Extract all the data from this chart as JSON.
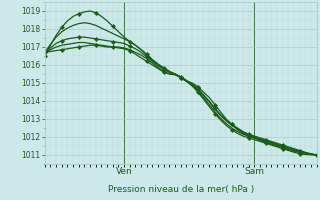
{
  "xlabel": "Pression niveau de la mer( hPa )",
  "bg_color": "#cce8e8",
  "grid_color_major": "#aacccc",
  "grid_color_minor": "#bbdddd",
  "line_color": "#1a5c1a",
  "ylim": [
    1010.5,
    1019.5
  ],
  "xlim": [
    0,
    48
  ],
  "ven_x": 14,
  "sam_x": 37,
  "yticks": [
    1011,
    1012,
    1013,
    1014,
    1015,
    1016,
    1017,
    1018,
    1019
  ],
  "series": [
    {
      "y": [
        1016.7,
        1016.75,
        1016.8,
        1016.85,
        1016.9,
        1016.95,
        1017.0,
        1017.05,
        1017.1,
        1017.1,
        1017.05,
        1017.0,
        1017.0,
        1016.95,
        1016.9,
        1016.8,
        1016.6,
        1016.4,
        1016.2,
        1016.0,
        1015.8,
        1015.6,
        1015.5,
        1015.5,
        1015.3,
        1015.1,
        1015.0,
        1014.8,
        1014.5,
        1014.2,
        1013.8,
        1013.4,
        1013.0,
        1012.7,
        1012.4,
        1012.2,
        1012.05,
        1011.95,
        1011.8,
        1011.7,
        1011.6,
        1011.5,
        1011.4,
        1011.3,
        1011.2,
        1011.15,
        1011.1,
        1011.05,
        1011.0
      ],
      "markers": true
    },
    {
      "y": [
        1016.7,
        1016.85,
        1017.0,
        1017.1,
        1017.15,
        1017.2,
        1017.25,
        1017.25,
        1017.2,
        1017.15,
        1017.1,
        1017.05,
        1017.0,
        1017.0,
        1016.95,
        1016.85,
        1016.7,
        1016.55,
        1016.35,
        1016.1,
        1015.85,
        1015.65,
        1015.5,
        1015.45,
        1015.3,
        1015.1,
        1014.9,
        1014.65,
        1014.3,
        1013.95,
        1013.55,
        1013.2,
        1012.9,
        1012.65,
        1012.45,
        1012.25,
        1012.1,
        1012.0,
        1011.9,
        1011.8,
        1011.7,
        1011.6,
        1011.5,
        1011.4,
        1011.3,
        1011.2,
        1011.1,
        1011.05,
        1011.0
      ],
      "markers": false
    },
    {
      "y": [
        1016.7,
        1016.95,
        1017.2,
        1017.35,
        1017.45,
        1017.5,
        1017.55,
        1017.55,
        1017.5,
        1017.45,
        1017.4,
        1017.35,
        1017.3,
        1017.25,
        1017.2,
        1017.05,
        1016.9,
        1016.7,
        1016.45,
        1016.2,
        1015.95,
        1015.75,
        1015.6,
        1015.5,
        1015.35,
        1015.15,
        1014.95,
        1014.7,
        1014.35,
        1014.0,
        1013.6,
        1013.25,
        1012.95,
        1012.7,
        1012.5,
        1012.3,
        1012.15,
        1012.05,
        1011.95,
        1011.85,
        1011.75,
        1011.65,
        1011.55,
        1011.45,
        1011.35,
        1011.25,
        1011.15,
        1011.07,
        1011.0
      ],
      "markers": true
    },
    {
      "y": [
        1016.7,
        1017.15,
        1017.55,
        1017.85,
        1018.05,
        1018.2,
        1018.3,
        1018.35,
        1018.3,
        1018.2,
        1018.05,
        1017.9,
        1017.75,
        1017.6,
        1017.45,
        1017.3,
        1017.1,
        1016.85,
        1016.55,
        1016.25,
        1016.0,
        1015.8,
        1015.6,
        1015.5,
        1015.3,
        1015.1,
        1014.85,
        1014.55,
        1014.2,
        1013.8,
        1013.4,
        1013.05,
        1012.75,
        1012.5,
        1012.3,
        1012.15,
        1012.05,
        1011.95,
        1011.85,
        1011.75,
        1011.65,
        1011.55,
        1011.45,
        1011.35,
        1011.25,
        1011.15,
        1011.07,
        1011.03,
        1011.0
      ],
      "markers": false
    },
    {
      "y": [
        1016.5,
        1017.1,
        1017.65,
        1018.1,
        1018.45,
        1018.7,
        1018.85,
        1018.95,
        1019.0,
        1018.9,
        1018.7,
        1018.45,
        1018.15,
        1017.85,
        1017.55,
        1017.3,
        1017.1,
        1016.85,
        1016.6,
        1016.3,
        1016.05,
        1015.85,
        1015.65,
        1015.5,
        1015.3,
        1015.1,
        1014.85,
        1014.5,
        1014.1,
        1013.7,
        1013.3,
        1012.95,
        1012.65,
        1012.4,
        1012.2,
        1012.05,
        1011.95,
        1011.85,
        1011.75,
        1011.65,
        1011.55,
        1011.45,
        1011.35,
        1011.25,
        1011.15,
        1011.07,
        1011.03,
        1011.01,
        1011.0
      ],
      "markers": true
    }
  ]
}
